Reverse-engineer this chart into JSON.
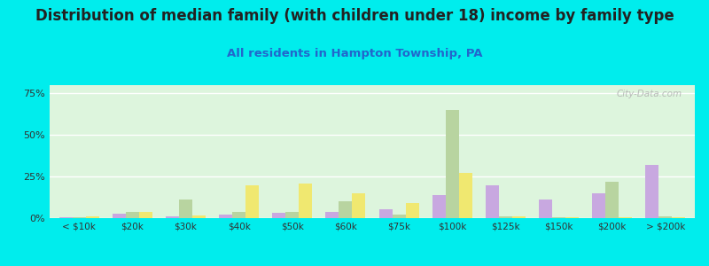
{
  "title": "Distribution of median family (with children under 18) income by family type",
  "subtitle": "All residents in Hampton Township, PA",
  "categories": [
    "< $10k",
    "$20k",
    "$30k",
    "$40k",
    "$50k",
    "$60k",
    "$75k",
    "$100k",
    "$125k",
    "$150k",
    "$200k",
    "> $200k"
  ],
  "series": {
    "Married couple": [
      0.5,
      2.5,
      1.0,
      2.0,
      3.0,
      4.0,
      5.5,
      14.0,
      20.0,
      11.0,
      15.0,
      32.0
    ],
    "Male, no wife": [
      0.5,
      3.5,
      11.0,
      3.5,
      3.5,
      10.0,
      2.0,
      65.0,
      1.0,
      0.5,
      22.0,
      1.0
    ],
    "Female, no husband": [
      1.0,
      4.0,
      1.5,
      20.0,
      21.0,
      15.0,
      9.0,
      27.0,
      1.0,
      0.5,
      0.5,
      0.5
    ]
  },
  "colors": {
    "Married couple": "#c8a8e0",
    "Male, no wife": "#b8d4a0",
    "Female, no husband": "#f0e870"
  },
  "legend_colors": {
    "Married couple": "#c8a0e0",
    "Male, no wife": "#c8dca8",
    "Female, no husband": "#f0ee80"
  },
  "ylim": [
    0,
    80
  ],
  "yticks": [
    0,
    25,
    50,
    75
  ],
  "ytick_labels": [
    "0%",
    "25%",
    "50%",
    "75%"
  ],
  "fig_bg": "#00eded",
  "plot_bg": "#ddf5dd",
  "bar_width": 0.25,
  "watermark": "City-Data.com",
  "title_fontsize": 12,
  "subtitle_fontsize": 9.5
}
